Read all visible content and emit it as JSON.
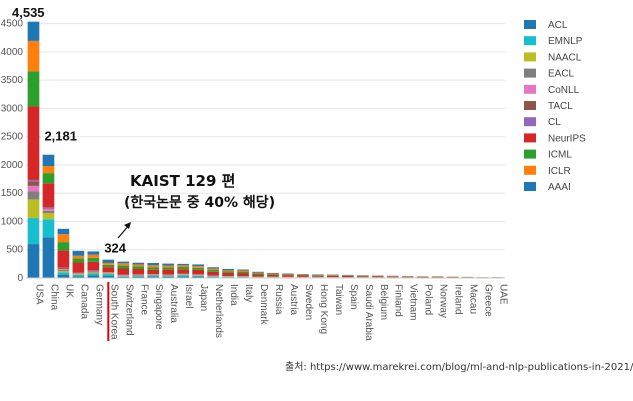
{
  "chart_data": {
    "type": "bar",
    "stacked": true,
    "categories": [
      "USA",
      "China",
      "UK",
      "Canada",
      "Germany",
      "South Korea",
      "Switzerland",
      "France",
      "Singapore",
      "Australia",
      "Israel",
      "Japan",
      "Netherlands",
      "India",
      "Italy",
      "Denmark",
      "Russia",
      "Austria",
      "Sweden",
      "Hong Kong",
      "Taiwan",
      "Spain",
      "Saudi Arabia",
      "Belgium",
      "Finland",
      "Vietnam",
      "Poland",
      "Norway",
      "Ireland",
      "Macau",
      "Greece",
      "UAE"
    ],
    "totals": [
      4535,
      2181,
      870,
      480,
      470,
      324,
      290,
      270,
      265,
      255,
      250,
      240,
      190,
      160,
      150,
      110,
      90,
      80,
      70,
      65,
      60,
      55,
      50,
      45,
      40,
      35,
      30,
      30,
      25,
      20,
      15,
      15
    ],
    "series": [
      {
        "name": "ACL",
        "color": "#1f77b4",
        "values": [
          600,
          720,
          60,
          30,
          45,
          35,
          20,
          20,
          25,
          20,
          30,
          25,
          15,
          10,
          10,
          8,
          8,
          6,
          6,
          8,
          6,
          5,
          5,
          4,
          4,
          4,
          3,
          3,
          2,
          2,
          2,
          2
        ]
      },
      {
        "name": "EMNLP",
        "color": "#17becf",
        "values": [
          460,
          320,
          40,
          25,
          35,
          35,
          12,
          15,
          20,
          15,
          20,
          15,
          10,
          10,
          8,
          6,
          6,
          4,
          4,
          6,
          4,
          4,
          4,
          3,
          3,
          3,
          2,
          2,
          2,
          2,
          1,
          1
        ]
      },
      {
        "name": "NAACL",
        "color": "#bcbd22",
        "values": [
          330,
          110,
          25,
          15,
          20,
          15,
          8,
          10,
          10,
          10,
          12,
          10,
          6,
          6,
          5,
          4,
          4,
          3,
          3,
          3,
          3,
          3,
          3,
          2,
          2,
          2,
          2,
          2,
          2,
          1,
          1,
          1
        ]
      },
      {
        "name": "EACL",
        "color": "#7f7f7f",
        "values": [
          140,
          40,
          20,
          8,
          15,
          5,
          6,
          8,
          4,
          6,
          5,
          5,
          5,
          3,
          4,
          3,
          3,
          3,
          2,
          1,
          1,
          2,
          1,
          2,
          1,
          1,
          1,
          1,
          1,
          1,
          1,
          1
        ]
      },
      {
        "name": "CoNLL",
        "color": "#e377c2",
        "values": [
          100,
          40,
          15,
          8,
          10,
          5,
          5,
          6,
          4,
          5,
          5,
          5,
          4,
          3,
          3,
          2,
          2,
          2,
          2,
          1,
          1,
          1,
          1,
          1,
          1,
          1,
          1,
          1,
          1,
          1,
          1,
          1
        ]
      },
      {
        "name": "TACL",
        "color": "#8c564b",
        "values": [
          80,
          20,
          20,
          6,
          8,
          5,
          5,
          4,
          3,
          5,
          5,
          3,
          4,
          2,
          2,
          2,
          2,
          2,
          2,
          1,
          1,
          1,
          1,
          1,
          1,
          1,
          1,
          1,
          1,
          1,
          1,
          1
        ]
      },
      {
        "name": "CL",
        "color": "#9467bd",
        "values": [
          25,
          6,
          5,
          2,
          3,
          2,
          2,
          2,
          1,
          2,
          2,
          1,
          1,
          1,
          1,
          1,
          1,
          1,
          1,
          1,
          1,
          1,
          1,
          1,
          1,
          1,
          1,
          1,
          1,
          1,
          1,
          1
        ]
      },
      {
        "name": "NeurIPS",
        "color": "#d62728",
        "values": [
          1300,
          420,
          300,
          180,
          150,
          90,
          110,
          95,
          80,
          85,
          75,
          80,
          65,
          55,
          55,
          35,
          30,
          30,
          25,
          20,
          20,
          18,
          15,
          15,
          12,
          10,
          9,
          9,
          7,
          5,
          3,
          3
        ]
      },
      {
        "name": "ICML",
        "color": "#2ca02c",
        "values": [
          620,
          180,
          150,
          70,
          70,
          40,
          52,
          45,
          40,
          40,
          40,
          36,
          32,
          25,
          25,
          19,
          14,
          12,
          10,
          10,
          9,
          8,
          8,
          6,
          6,
          5,
          4,
          4,
          3,
          2,
          2,
          2
        ]
      },
      {
        "name": "ICLR",
        "color": "#ff7f0e",
        "values": [
          540,
          125,
          140,
          50,
          55,
          35,
          40,
          35,
          38,
          32,
          30,
          30,
          25,
          20,
          20,
          15,
          10,
          9,
          8,
          7,
          7,
          6,
          6,
          5,
          5,
          4,
          3,
          3,
          3,
          2,
          1,
          1
        ]
      },
      {
        "name": "AAAI",
        "color": "#1f77b4",
        "values": [
          340,
          200,
          95,
          86,
          59,
          57,
          30,
          30,
          40,
          35,
          26,
          30,
          23,
          25,
          17,
          15,
          10,
          8,
          7,
          7,
          7,
          6,
          5,
          5,
          4,
          3,
          3,
          3,
          2,
          2,
          1,
          1
        ]
      }
    ],
    "yticks": [
      0,
      500,
      1000,
      1500,
      2000,
      2500,
      3000,
      3500,
      4000,
      4500
    ],
    "ytick_labels": [
      "0",
      "500",
      "1000",
      "1500",
      "2000",
      "2500",
      "3000",
      "3500",
      "4000",
      "4500"
    ],
    "ylim": [
      0,
      4600
    ],
    "grid": true,
    "legend_position": "right",
    "data_labels": [
      {
        "category": "USA",
        "text": "4,535"
      },
      {
        "category": "China",
        "text": "2,181"
      },
      {
        "category": "South Korea",
        "text": "324"
      }
    ],
    "annotation": {
      "line1": "KAIST 129 편",
      "line2": "(한국논문 중 40% 해당)"
    },
    "highlight_category": "South Korea",
    "highlight_color": "#e00000",
    "source": "출처: https://www.marekrei.com/blog/ml-and-nlp-publications-in-2021/"
  }
}
